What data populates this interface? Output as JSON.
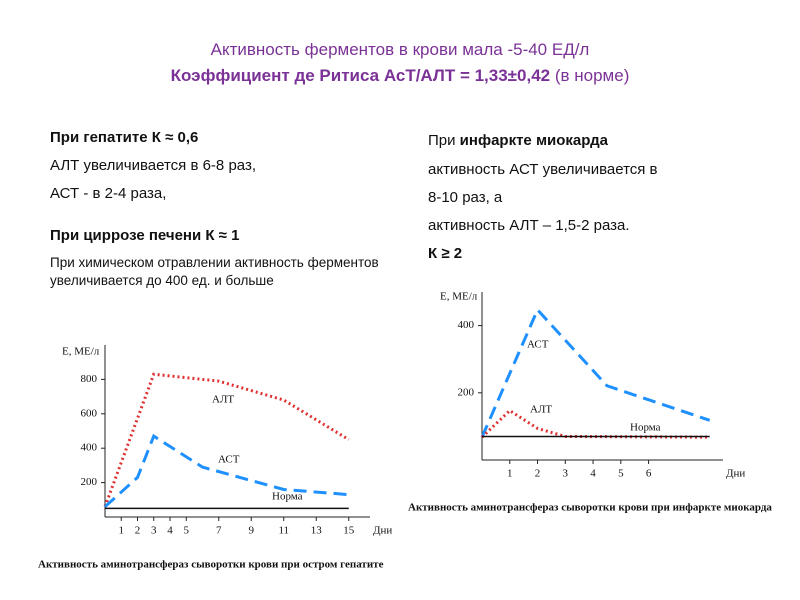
{
  "header": {
    "line1": "Активность ферментов в крови мала -5-40 ЕД/л",
    "line2_bold": "Коэффициент де Ритиса АсТ/АЛТ = 1,33±0,42",
    "line2_rest": " (в норме)"
  },
  "left_text": {
    "hepatitis": "При гепатите К ≈ 0,6",
    "alt": "АЛТ увеличивается  в 6-8 раз,",
    "ast": "АСТ - в 2-4 раза,",
    "cirrhosis": "При циррозе печени К ≈ 1",
    "poisoning": "При химическом отравлении активность ферментов увеличивается  до 400 ед. и больше"
  },
  "right_text": {
    "prefix": "При ",
    "infarct": "инфаркте миокарда",
    "line2": "активность АСТ увеличивается  в",
    "line3": "8-10 раз, а",
    "line4": "активность АЛТ – 1,5-2 раза.",
    "k": "К ≥ 2"
  },
  "chart_data": [
    {
      "type": "line",
      "caption": "Активность аминотрансфераз сыворотки крови при остром гепатите",
      "ylabel": "Е, МЕ/л",
      "xlabel": "Дни",
      "xlim": [
        0,
        16
      ],
      "xticks": [
        1,
        2,
        3,
        4,
        5,
        7,
        9,
        11,
        13,
        15
      ],
      "ylim": [
        0,
        1000
      ],
      "yticks": [
        200,
        400,
        600,
        800
      ],
      "series": [
        {
          "name": "АЛТ",
          "color": "#e03030",
          "x": [
            0,
            3,
            7,
            11,
            15
          ],
          "values": [
            60,
            830,
            790,
            680,
            450
          ]
        },
        {
          "name": "АСТ",
          "color": "#1e90ff",
          "x": [
            0,
            2,
            3,
            6,
            11,
            15
          ],
          "values": [
            60,
            230,
            470,
            290,
            160,
            130
          ]
        },
        {
          "name": "Норма",
          "color": "#111111",
          "x": [
            0,
            15
          ],
          "values": [
            50,
            50
          ]
        }
      ]
    },
    {
      "type": "line",
      "caption": "Активность аминотрансфераз сыворотки крови при инфаркте миокарда",
      "ylabel": "Е, МЕ/л",
      "xlabel": "Дни",
      "xlim": [
        0,
        8.5
      ],
      "xticks": [
        1,
        2,
        3,
        4,
        5,
        6
      ],
      "ylim": [
        0,
        500
      ],
      "yticks": [
        200,
        400
      ],
      "series": [
        {
          "name": "АСТ",
          "color": "#1e90ff",
          "x": [
            0,
            2,
            4.5,
            8.2
          ],
          "values": [
            68,
            447,
            221,
            118
          ]
        },
        {
          "name": "АЛТ",
          "color": "#e03030",
          "x": [
            0,
            1,
            2,
            3,
            8.2
          ],
          "values": [
            68,
            147,
            94,
            70,
            68
          ]
        },
        {
          "name": "Норма",
          "color": "#111111",
          "x": [
            0,
            8.2
          ],
          "values": [
            70,
            70
          ]
        }
      ]
    }
  ]
}
